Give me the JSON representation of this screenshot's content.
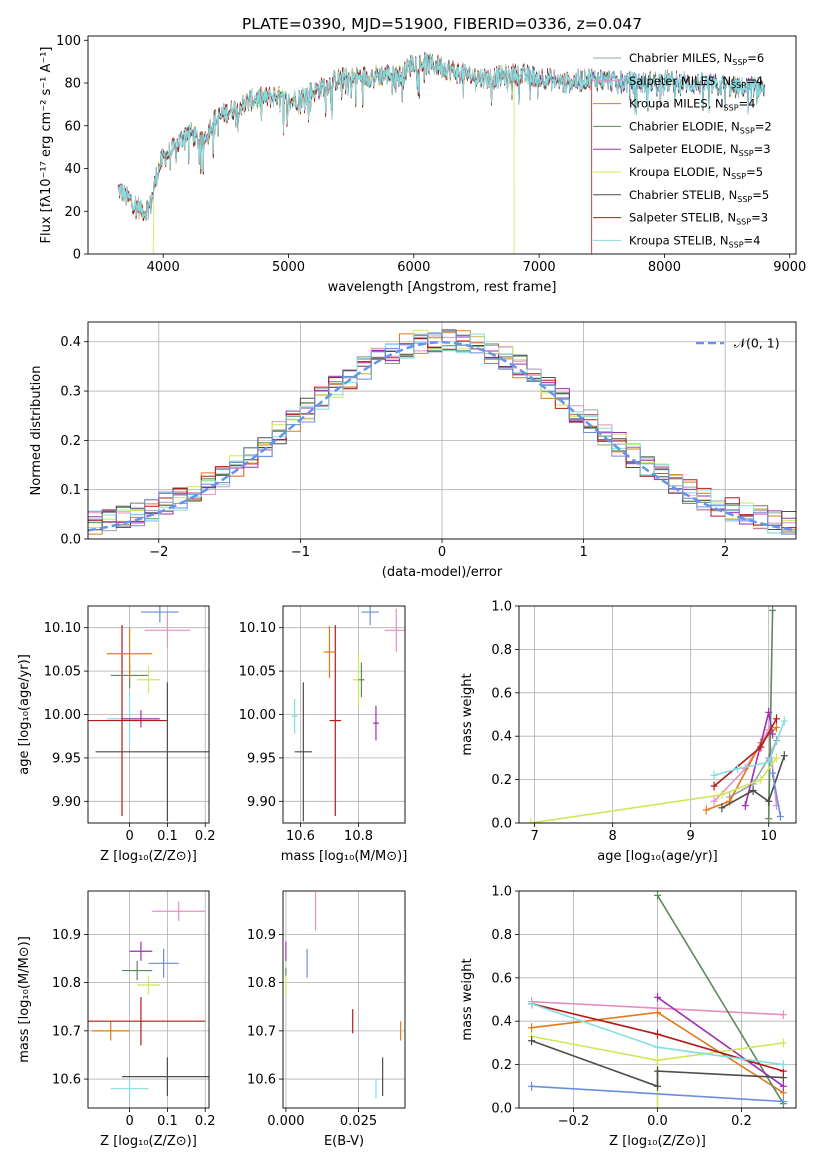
{
  "figure": {
    "title": "PLATE=0390, MJD=51900, FIBERID=0336, z=0.047"
  },
  "colors": {
    "Chabrier MILES": "#8fa9a8",
    "Salpeter MILES": "#e58fc4",
    "Kroupa MILES": "#e07b1a",
    "Chabrier ELODIE": "#5c8a5c",
    "Salpeter ELODIE": "#a32db3",
    "Kroupa ELODIE": "#cfe85a",
    "Chabrier STELIB": "#4d4d4d",
    "Salpeter STELIB": "#b31a1a",
    "Kroupa STELIB": "#84dde0",
    "blue": "#6a8fdb",
    "normal_curve": "#6495ed",
    "grid": "#b0b0b0"
  },
  "chart_data": [
    {
      "id": "spectrum",
      "type": "line",
      "xlabel": "wavelength [Angstrom, rest frame]",
      "ylabel": "Flux [fλ10⁻¹⁷ erg cm⁻² s⁻¹ A⁻¹]",
      "xlim": [
        3400,
        9050
      ],
      "ylim": [
        0,
        102
      ],
      "xticks": [
        4000,
        5000,
        6000,
        7000,
        8000,
        9000
      ],
      "yticks": [
        0,
        20,
        40,
        60,
        80,
        100
      ],
      "grid": false,
      "legend_position": "top-right",
      "legend": [
        {
          "name": "Chabrier MILES",
          "suffix": "=6"
        },
        {
          "name": "Salpeter MILES",
          "suffix": "=4"
        },
        {
          "name": "Kroupa MILES",
          "suffix": "=4"
        },
        {
          "name": "Chabrier ELODIE",
          "suffix": "=2"
        },
        {
          "name": "Salpeter ELODIE",
          "suffix": "=3"
        },
        {
          "name": "Kroupa ELODIE",
          "suffix": "=5"
        },
        {
          "name": "Chabrier STELIB",
          "suffix": "=5"
        },
        {
          "name": "Salpeter STELIB",
          "suffix": "=3"
        },
        {
          "name": "Kroupa STELIB",
          "suffix": "=4"
        }
      ],
      "continuum": {
        "x": [
          3650,
          3700,
          3800,
          3850,
          3900,
          3950,
          4000,
          4100,
          4200,
          4300,
          4400,
          4500,
          4700,
          4900,
          5000,
          5200,
          5400,
          5600,
          5800,
          5900,
          6000,
          6200,
          6400,
          6600,
          6800,
          7000,
          7200,
          7400,
          7600,
          7800,
          8000,
          8200,
          8400,
          8600,
          8800
        ],
        "y": [
          30,
          27,
          22,
          20,
          23,
          38,
          45,
          50,
          58,
          52,
          62,
          66,
          72,
          74,
          71,
          76,
          82,
          83,
          84,
          83,
          90,
          88,
          84,
          82,
          84,
          83,
          80,
          82,
          81,
          80,
          81,
          80,
          79,
          78,
          78
        ]
      }
    },
    {
      "id": "residuals",
      "type": "line",
      "xlabel": "(data-model)/error",
      "ylabel": "Normed distribution",
      "xlim": [
        -2.5,
        2.5
      ],
      "ylim": [
        0,
        0.44
      ],
      "xticks": [
        -2,
        -1,
        0,
        1,
        2
      ],
      "yticks": [
        0.0,
        0.1,
        0.2,
        0.3,
        0.4
      ],
      "xticklabels": [
        "−2",
        "−1",
        "0",
        "1",
        "2"
      ],
      "yticklabels": [
        "0.0",
        "0.1",
        "0.2",
        "0.3",
        "0.4"
      ],
      "grid": true,
      "legend": [
        "𝒩(0, 1)"
      ],
      "legend_position": "top-right",
      "bin_width": 0.1
    },
    {
      "id": "age_vs_Z",
      "type": "scatter",
      "xlabel": "Z [log₁₀(Z/Z⊙)]",
      "ylabel": "age  [log₁₀(age/yr)]",
      "xlim": [
        -0.11,
        0.21
      ],
      "ylim": [
        9.875,
        10.125
      ],
      "xticks": [
        0.0,
        0.1,
        0.2
      ],
      "yticks": [
        9.9,
        9.95,
        10.0,
        10.05,
        10.1
      ],
      "grid": true,
      "points": [
        {
          "model": "Kroupa STELIB",
          "x": 0.0,
          "y": 9.995,
          "xerr": 0.06,
          "yerr": 0.03
        },
        {
          "model": "Salpeter ELODIE",
          "x": 0.03,
          "y": 9.995,
          "xerr": 0.05,
          "yerr": 0.01
        },
        {
          "model": "Salpeter STELIB",
          "x": -0.02,
          "y": 9.993,
          "xerr": 0.12,
          "yerr": 0.11
        },
        {
          "model": "Chabrier STELIB",
          "x": 0.1,
          "y": 9.957,
          "xerr": 0.19,
          "yerr": 0.08
        },
        {
          "model": "Chabrier ELODIE",
          "x": 0.0,
          "y": 10.045,
          "xerr": 0.05,
          "yerr": 0.015
        },
        {
          "model": "Kroupa ELODIE",
          "x": 0.05,
          "y": 10.04,
          "xerr": 0.03,
          "yerr": 0.015
        },
        {
          "model": "Kroupa MILES",
          "x": 0.0,
          "y": 10.07,
          "xerr": 0.06,
          "yerr": 0.03
        },
        {
          "model": "blue",
          "x": 0.08,
          "y": 10.118,
          "xerr": 0.05,
          "yerr": 0.012
        },
        {
          "model": "Salpeter MILES",
          "x": 0.1,
          "y": 10.097,
          "xerr": 0.06,
          "yerr": 0.02
        }
      ]
    },
    {
      "id": "age_vs_mass",
      "type": "scatter",
      "xlabel": "mass [log₁₀(M/M⊙)]",
      "xlim": [
        10.54,
        10.96
      ],
      "ylim": [
        9.875,
        10.125
      ],
      "xticks": [
        10.6,
        10.8
      ],
      "yticks": [
        9.9,
        9.95,
        10.0,
        10.05,
        10.1
      ],
      "grid": true,
      "points": [
        {
          "model": "Kroupa STELIB",
          "x": 10.58,
          "y": 9.998,
          "xerr": 0.01,
          "yerr": 0.02
        },
        {
          "model": "Chabrier STELIB",
          "x": 10.61,
          "y": 9.957,
          "xerr": 0.03,
          "yerr": 0.08
        },
        {
          "model": "Salpeter STELIB",
          "x": 10.72,
          "y": 9.993,
          "xerr": 0.02,
          "yerr": 0.11
        },
        {
          "model": "Kroupa MILES",
          "x": 10.7,
          "y": 10.072,
          "xerr": 0.02,
          "yerr": 0.03
        },
        {
          "model": "Kroupa ELODIE",
          "x": 10.8,
          "y": 10.04,
          "xerr": 0.02,
          "yerr": 0.03
        },
        {
          "model": "Chabrier ELODIE",
          "x": 10.81,
          "y": 10.04,
          "xerr": 0.01,
          "yerr": 0.02
        },
        {
          "model": "blue",
          "x": 10.84,
          "y": 10.118,
          "xerr": 0.03,
          "yerr": 0.015
        },
        {
          "model": "Salpeter ELODIE",
          "x": 10.86,
          "y": 9.99,
          "xerr": 0.01,
          "yerr": 0.02
        },
        {
          "model": "Salpeter MILES",
          "x": 10.93,
          "y": 10.097,
          "xerr": 0.04,
          "yerr": 0.025
        }
      ]
    },
    {
      "id": "mass_vs_Z",
      "type": "scatter",
      "xlabel": "Z [log₁₀(Z/Z⊙)]",
      "ylabel": "mass [log₁₀(M/M⊙)]",
      "xlim": [
        -0.11,
        0.21
      ],
      "ylim": [
        10.54,
        10.99
      ],
      "xticks": [
        0.0,
        0.1,
        0.2
      ],
      "yticks": [
        10.6,
        10.7,
        10.8,
        10.9
      ],
      "grid": true,
      "points": [
        {
          "model": "Kroupa STELIB",
          "x": 0.0,
          "y": 10.58,
          "xerr": 0.05,
          "yerr": 0.02
        },
        {
          "model": "Chabrier STELIB",
          "x": 0.1,
          "y": 10.605,
          "xerr": 0.12,
          "yerr": 0.04
        },
        {
          "model": "Kroupa MILES",
          "x": -0.05,
          "y": 10.7,
          "xerr": 0.05,
          "yerr": 0.02
        },
        {
          "model": "Salpeter STELIB",
          "x": 0.03,
          "y": 10.72,
          "xerr": 0.17,
          "yerr": 0.05
        },
        {
          "model": "Kroupa ELODIE",
          "x": 0.05,
          "y": 10.795,
          "xerr": 0.03,
          "yerr": 0.02
        },
        {
          "model": "Chabrier ELODIE",
          "x": 0.02,
          "y": 10.825,
          "xerr": 0.04,
          "yerr": 0.02
        },
        {
          "model": "blue",
          "x": 0.09,
          "y": 10.84,
          "xerr": 0.04,
          "yerr": 0.03
        },
        {
          "model": "Salpeter ELODIE",
          "x": 0.03,
          "y": 10.865,
          "xerr": 0.03,
          "yerr": 0.02
        },
        {
          "model": "Salpeter MILES",
          "x": 0.13,
          "y": 10.948,
          "xerr": 0.07,
          "yerr": 0.02
        }
      ]
    },
    {
      "id": "mass_vs_ebv",
      "type": "scatter",
      "xlabel": "E(B-V)",
      "xlim": [
        -0.001,
        0.041
      ],
      "ylim": [
        10.54,
        10.99
      ],
      "xticks": [
        0.0,
        0.025
      ],
      "xticklabels": [
        "0.000",
        "0.025"
      ],
      "yticks": [
        10.6,
        10.7,
        10.8,
        10.9
      ],
      "grid": true,
      "points": [
        {
          "model": "Salpeter ELODIE",
          "x": 0.0,
          "y": 10.865,
          "yerr": 0.02
        },
        {
          "model": "Chabrier ELODIE",
          "x": 0.0,
          "y": 10.82,
          "yerr": 0.01
        },
        {
          "model": "Kroupa ELODIE",
          "x": 0.0,
          "y": 10.795,
          "yerr": 0.02
        },
        {
          "model": "blue",
          "x": 0.0073,
          "y": 10.84,
          "yerr": 0.03
        },
        {
          "model": "Salpeter MILES",
          "x": 0.0102,
          "y": 10.948,
          "yerr": 0.04
        },
        {
          "model": "Salpeter STELIB",
          "x": 0.023,
          "y": 10.72,
          "yerr": 0.025
        },
        {
          "model": "Kroupa STELIB",
          "x": 0.031,
          "y": 10.58,
          "yerr": 0.02
        },
        {
          "model": "Chabrier STELIB",
          "x": 0.0333,
          "y": 10.605,
          "yerr": 0.04
        },
        {
          "model": "Kroupa MILES",
          "x": 0.0395,
          "y": 10.7,
          "yerr": 0.02
        }
      ]
    },
    {
      "id": "weight_vs_age",
      "type": "line",
      "xlabel": "age  [log₁₀(age/yr)]",
      "ylabel": "mass weight",
      "xlim": [
        6.8,
        10.35
      ],
      "ylim": [
        0,
        1.0
      ],
      "xticks": [
        7,
        8,
        9,
        10
      ],
      "yticks": [
        0.0,
        0.2,
        0.4,
        0.6,
        0.8,
        1.0
      ],
      "grid": true,
      "series": [
        {
          "model": "Chabrier MILES",
          "x": [
            9.5,
            9.8,
            10.0,
            10.1
          ],
          "y": [
            0.12,
            0.18,
            0.3,
            0.38
          ]
        },
        {
          "model": "Salpeter MILES",
          "x": [
            9.3,
            9.7,
            10.0,
            10.1
          ],
          "y": [
            0.1,
            0.25,
            0.43,
            0.08
          ]
        },
        {
          "model": "Kroupa MILES",
          "x": [
            9.2,
            9.5,
            9.9,
            10.1
          ],
          "y": [
            0.06,
            0.1,
            0.37,
            0.44
          ]
        },
        {
          "model": "Chabrier ELODIE",
          "x": [
            10.0,
            10.05
          ],
          "y": [
            0.02,
            0.98
          ]
        },
        {
          "model": "Salpeter ELODIE",
          "x": [
            9.7,
            10.0,
            10.05
          ],
          "y": [
            0.08,
            0.51,
            0.41
          ]
        },
        {
          "model": "Kroupa ELODIE",
          "x": [
            6.95,
            9.4,
            9.9,
            10.1
          ],
          "y": [
            0.0,
            0.13,
            0.2,
            0.3
          ]
        },
        {
          "model": "Chabrier STELIB",
          "x": [
            9.4,
            9.8,
            10.0,
            10.2
          ],
          "y": [
            0.07,
            0.15,
            0.1,
            0.31
          ]
        },
        {
          "model": "Salpeter STELIB",
          "x": [
            9.3,
            9.9,
            10.1
          ],
          "y": [
            0.17,
            0.35,
            0.48
          ]
        },
        {
          "model": "Kroupa STELIB",
          "x": [
            9.3,
            9.6,
            10.0,
            10.2
          ],
          "y": [
            0.22,
            0.25,
            0.28,
            0.47
          ]
        },
        {
          "model": "blue",
          "x": [
            10.05,
            10.15
          ],
          "y": [
            0.23,
            0.03
          ]
        }
      ]
    },
    {
      "id": "weight_vs_Z",
      "type": "line",
      "xlabel": "Z [log₁₀(Z/Z⊙)]",
      "ylabel": "mass weight",
      "xlim": [
        -0.33,
        0.33
      ],
      "ylim": [
        0,
        1.0
      ],
      "xticks": [
        -0.2,
        0.0,
        0.2
      ],
      "xticklabels": [
        "−0.2",
        "0.0",
        "0.2"
      ],
      "yticks": [
        0.0,
        0.2,
        0.4,
        0.6,
        0.8,
        1.0
      ],
      "grid": true,
      "series": [
        {
          "model": "Salpeter MILES",
          "x": [
            -0.3,
            0.0,
            0.3
          ],
          "y": [
            0.49,
            0.46,
            0.43
          ]
        },
        {
          "model": "Kroupa MILES",
          "x": [
            -0.3,
            0.0,
            0.3
          ],
          "y": [
            0.37,
            0.44,
            0.07
          ]
        },
        {
          "model": "Chabrier ELODIE",
          "x": [
            0.0,
            0.3
          ],
          "y": [
            0.98,
            0.02
          ]
        },
        {
          "model": "Salpeter ELODIE",
          "x": [
            0.0,
            0.3
          ],
          "y": [
            0.51,
            0.1
          ]
        },
        {
          "model": "Kroupa ELODIE",
          "x": [
            -0.3,
            0.0,
            0.3
          ],
          "y": [
            0.33,
            0.22,
            0.3
          ]
        },
        {
          "model": "Kroupa ELODIE",
          "x": [
            0.0,
            0.0
          ],
          "y": [
            0.0,
            0.22
          ]
        },
        {
          "model": "Chabrier STELIB",
          "x": [
            -0.3,
            0.0,
            0.0,
            0.3
          ],
          "y": [
            0.31,
            0.1,
            0.17,
            0.14
          ]
        },
        {
          "model": "Salpeter STELIB",
          "x": [
            -0.3,
            0.0,
            0.3
          ],
          "y": [
            0.48,
            0.34,
            0.17
          ]
        },
        {
          "model": "Kroupa STELIB",
          "x": [
            -0.3,
            0.0,
            0.3
          ],
          "y": [
            0.48,
            0.28,
            0.2
          ]
        },
        {
          "model": "blue",
          "x": [
            -0.3,
            0.3
          ],
          "y": [
            0.1,
            0.03
          ]
        }
      ]
    }
  ]
}
